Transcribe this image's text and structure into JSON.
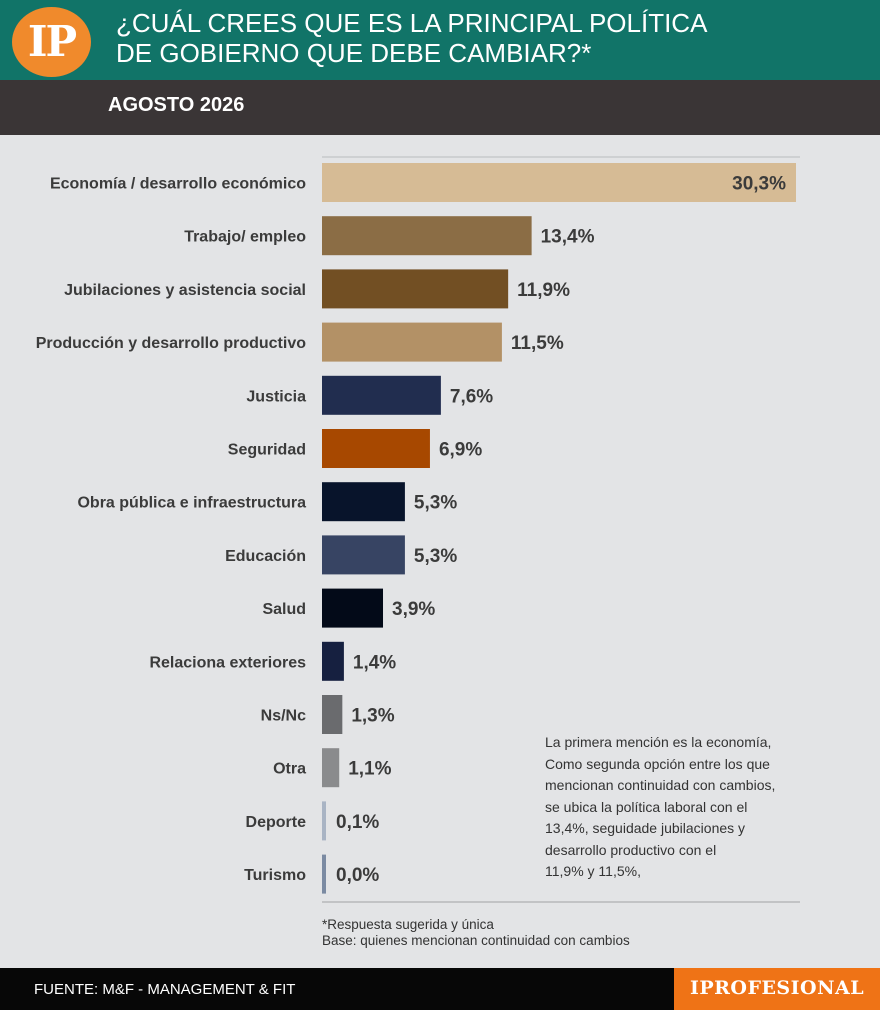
{
  "header": {
    "logo_text": "IP",
    "title_line1": "¿CUÁL CREES QUE ES LA PRINCIPAL POLÍTICA",
    "title_line2": "DE GOBIERNO QUE DEBE CAMBIAR?*",
    "date": "AGOSTO 2026"
  },
  "chart_data": {
    "type": "bar",
    "orientation": "horizontal",
    "categories": [
      "Economía / desarrollo económico",
      "Trabajo/ empleo",
      "Jubilaciones y asistencia social",
      "Producción y desarrollo productivo",
      "Justicia",
      "Seguridad",
      "Obra pública e infraestructura",
      "Educación",
      "Salud",
      "Relaciona exteriores",
      "Ns/Nc",
      "Otra",
      "Deporte",
      "Turismo"
    ],
    "values": [
      30.3,
      13.4,
      11.9,
      11.5,
      7.6,
      6.9,
      5.3,
      5.3,
      3.9,
      1.4,
      1.3,
      1.1,
      0.1,
      0.0
    ],
    "value_labels": [
      "30,3%",
      "13,4%",
      "11,9%",
      "11,5%",
      "7,6%",
      "6,9%",
      "5,3%",
      "5,3%",
      "3,9%",
      "1,4%",
      "1,3%",
      "1,1%",
      "0,1%",
      "0,0%"
    ],
    "colors": [
      "#d6bb95",
      "#8b6d45",
      "#724f23",
      "#b39166",
      "#212d4f",
      "#a74800",
      "#08142b",
      "#374463",
      "#030a18",
      "#162040",
      "#6a6b6e",
      "#8a8b8d",
      "#a9b4c4",
      "#7b8aa2"
    ],
    "grid": false
  },
  "note": {
    "line1": "La primera mención es la economía,",
    "line2": "Como segunda opción entre los que",
    "line3": "mencionan continuidad con cambios,",
    "line4": "se ubica la política laboral con el",
    "line5": "13,4%, seguidade jubilaciones y",
    "line6": "desarrollo productivo con el",
    "line7": "11,9% y 11,5%,"
  },
  "footnote": {
    "line1": "*Respuesta sugerida y única",
    "line2": "Base: quienes mencionan continuidad con cambios"
  },
  "footer": {
    "source": "FUENTE: M&F - MANAGEMENT & FIT",
    "brand": "IPROFESIONAL"
  }
}
